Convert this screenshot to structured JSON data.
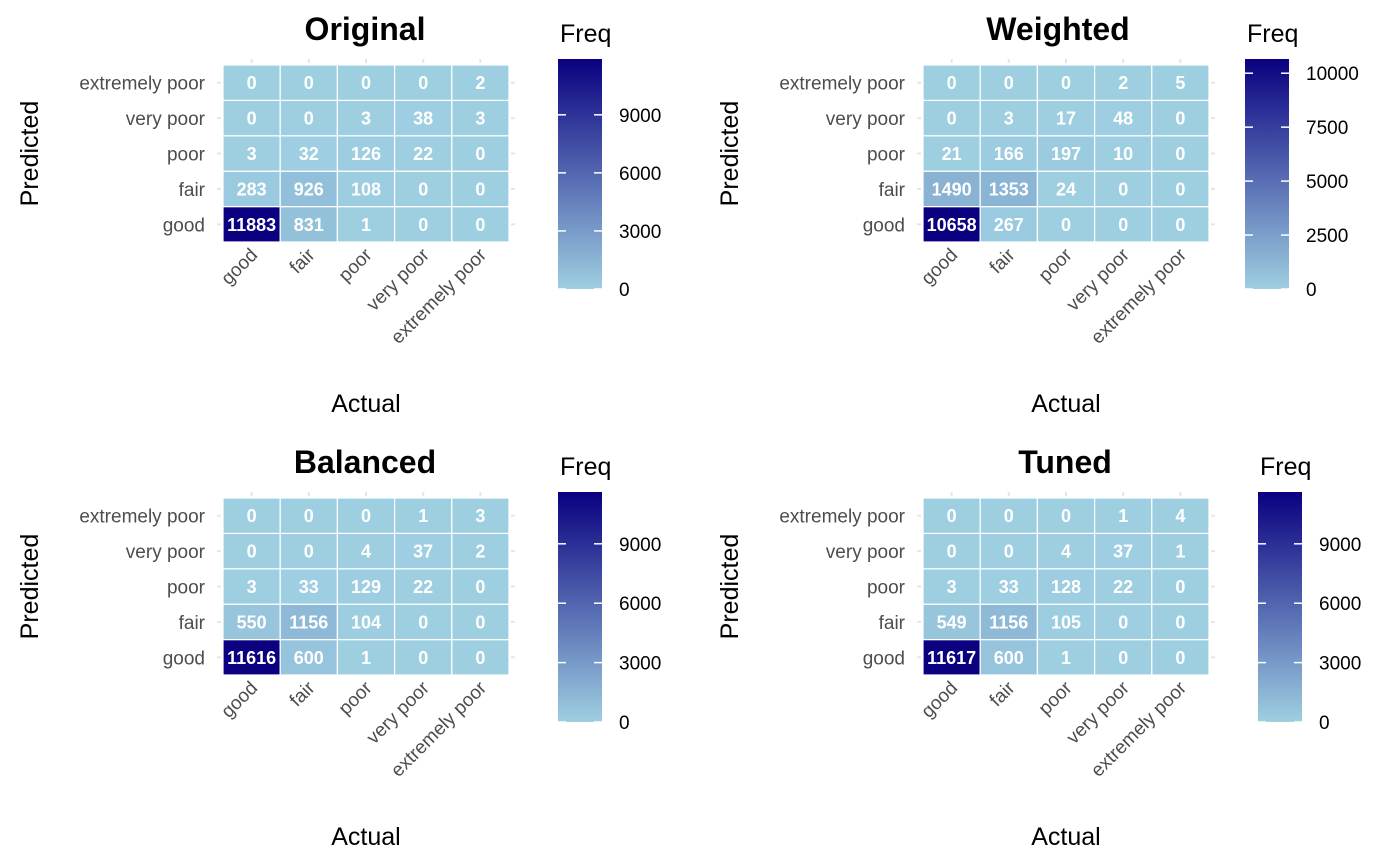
{
  "colors": {
    "low": "#9ecfe1",
    "high": "#0a0080",
    "cell_border": "#ffffff",
    "tick": "#e6e6e6"
  },
  "chart_data": [
    {
      "type": "heatmap",
      "title": "Original",
      "xlabel": "Actual",
      "ylabel": "Predicted",
      "x_categories": [
        "good",
        "fair",
        "poor",
        "very poor",
        "extremely poor"
      ],
      "y_categories": [
        "good",
        "fair",
        "poor",
        "very poor",
        "extremely poor"
      ],
      "values": [
        [
          11883,
          831,
          1,
          0,
          0
        ],
        [
          283,
          926,
          108,
          0,
          0
        ],
        [
          3,
          32,
          126,
          22,
          0
        ],
        [
          0,
          0,
          3,
          38,
          3
        ],
        [
          0,
          0,
          0,
          0,
          2
        ]
      ],
      "legend": {
        "title": "Freq",
        "ticks": [
          0,
          3000,
          6000,
          9000
        ],
        "max": 11883
      }
    },
    {
      "type": "heatmap",
      "title": "Weighted",
      "xlabel": "Actual",
      "ylabel": "Predicted",
      "x_categories": [
        "good",
        "fair",
        "poor",
        "very poor",
        "extremely poor"
      ],
      "y_categories": [
        "good",
        "fair",
        "poor",
        "very poor",
        "extremely poor"
      ],
      "values": [
        [
          10658,
          267,
          0,
          0,
          0
        ],
        [
          1490,
          1353,
          24,
          0,
          0
        ],
        [
          21,
          166,
          197,
          10,
          0
        ],
        [
          0,
          3,
          17,
          48,
          0
        ],
        [
          0,
          0,
          0,
          2,
          5
        ]
      ],
      "legend": {
        "title": "Freq",
        "ticks": [
          0,
          2500,
          5000,
          7500,
          10000
        ],
        "max": 10658
      }
    },
    {
      "type": "heatmap",
      "title": "Balanced",
      "xlabel": "Actual",
      "ylabel": "Predicted",
      "x_categories": [
        "good",
        "fair",
        "poor",
        "very poor",
        "extremely poor"
      ],
      "y_categories": [
        "good",
        "fair",
        "poor",
        "very poor",
        "extremely poor"
      ],
      "values": [
        [
          11616,
          600,
          1,
          0,
          0
        ],
        [
          550,
          1156,
          104,
          0,
          0
        ],
        [
          3,
          33,
          129,
          22,
          0
        ],
        [
          0,
          0,
          4,
          37,
          2
        ],
        [
          0,
          0,
          0,
          1,
          3
        ]
      ],
      "legend": {
        "title": "Freq",
        "ticks": [
          0,
          3000,
          6000,
          9000
        ],
        "max": 11616
      }
    },
    {
      "type": "heatmap",
      "title": "Tuned",
      "xlabel": "Actual",
      "ylabel": "Predicted",
      "x_categories": [
        "good",
        "fair",
        "poor",
        "very poor",
        "extremely poor"
      ],
      "y_categories": [
        "good",
        "fair",
        "poor",
        "very poor",
        "extremely poor"
      ],
      "values": [
        [
          11617,
          600,
          1,
          0,
          0
        ],
        [
          549,
          1156,
          105,
          0,
          0
        ],
        [
          3,
          33,
          128,
          22,
          0
        ],
        [
          0,
          0,
          4,
          37,
          1
        ],
        [
          0,
          0,
          0,
          1,
          4
        ]
      ],
      "legend": {
        "title": "Freq",
        "ticks": [
          0,
          3000,
          6000,
          9000
        ],
        "max": 11617
      }
    }
  ]
}
